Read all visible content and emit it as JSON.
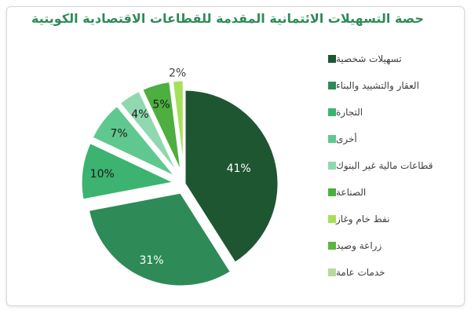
{
  "chart_data": {
    "type": "pie",
    "title": "حصة التسهيلات الائتمانية المقدمة للقطاعات الاقتصادية الكويتية",
    "legend_position": "right",
    "slices": [
      {
        "name": "تسهيلات شخصية",
        "value": 41,
        "label": "41%",
        "color": "#1e5631"
      },
      {
        "name": "العقار والتشييد والبناء",
        "value": 31,
        "label": "31%",
        "color": "#2e8b57"
      },
      {
        "name": "التجارة",
        "value": 10,
        "label": "10%",
        "color": "#3cb371"
      },
      {
        "name": "أخرى",
        "value": 7,
        "label": "7%",
        "color": "#5fc88f"
      },
      {
        "name": "قطاعات مالية غير البنوك",
        "value": 4,
        "label": "4%",
        "color": "#8fd8b0"
      },
      {
        "name": "الصناعة",
        "value": 5,
        "label": "5%",
        "color": "#4caf3f"
      },
      {
        "name": "نفط خام وغاز",
        "value": 2,
        "label": "2%",
        "color": "#a6e05a"
      }
    ],
    "extra_legend": [
      {
        "name": "زراعة وصيد",
        "color": "#5bb641"
      },
      {
        "name": "خدمات عامة",
        "color": "#b9d99a"
      }
    ]
  },
  "colors": {
    "title": "#2e8b57",
    "border": "#d9d9d9",
    "slice_stroke": "#ffffff"
  }
}
